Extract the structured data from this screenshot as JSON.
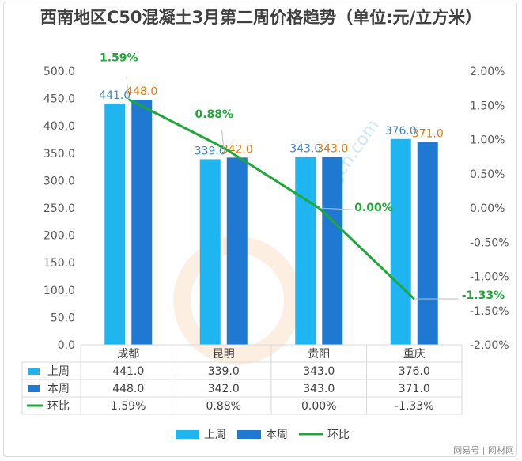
{
  "title": "西南地区C50混凝土3月第二周价格趋势（单位:元/立方米）",
  "watermark": "zjjcn.com",
  "footer": "网易号 | 网材网",
  "colors": {
    "last_week": "#1fb5f0",
    "this_week": "#1f78d1",
    "ratio": "#1fa83a",
    "last_label": "#3b86c4",
    "this_label": "#e07a10"
  },
  "chart_data": {
    "type": "bar",
    "categories": [
      "成都",
      "昆明",
      "贵阳",
      "重庆"
    ],
    "series": [
      {
        "name": "上周",
        "values": [
          441.0,
          339.0,
          343.0,
          376.0
        ],
        "labels": [
          "441.0",
          "339.0",
          "343.0",
          "376.0"
        ]
      },
      {
        "name": "本周",
        "values": [
          448.0,
          342.0,
          343.0,
          371.0
        ],
        "labels": [
          "448.0",
          "342.0",
          "343.0",
          "371.0"
        ]
      },
      {
        "name": "环比",
        "type": "line",
        "axis": "right",
        "values": [
          1.59,
          0.88,
          0.0,
          -1.33
        ],
        "labels": [
          "1.59%",
          "0.88%",
          "0.00%",
          "-1.33%"
        ]
      }
    ],
    "y_left": {
      "range": [
        0,
        500
      ],
      "ticks": [
        "0.0",
        "50.0",
        "100.0",
        "150.0",
        "200.0",
        "250.0",
        "300.0",
        "350.0",
        "400.0",
        "450.0",
        "500.0"
      ]
    },
    "y_right": {
      "range": [
        -2.0,
        2.0
      ],
      "ticks": [
        "-2.00%",
        "-1.50%",
        "-1.00%",
        "-0.50%",
        "0.00%",
        "0.50%",
        "1.00%",
        "1.50%",
        "2.00%"
      ]
    },
    "table": {
      "headers": [
        "成都",
        "昆明",
        "贵阳",
        "重庆"
      ],
      "rows": [
        {
          "label": "上周",
          "cells": [
            "441.0",
            "339.0",
            "343.0",
            "376.0"
          ]
        },
        {
          "label": "本周",
          "cells": [
            "448.0",
            "342.0",
            "343.0",
            "371.0"
          ]
        },
        {
          "label": "环比",
          "cells": [
            "1.59%",
            "0.88%",
            "0.00%",
            "-1.33%"
          ]
        }
      ]
    },
    "legend": [
      "上周",
      "本周",
      "环比"
    ],
    "legend_position": "bottom"
  }
}
